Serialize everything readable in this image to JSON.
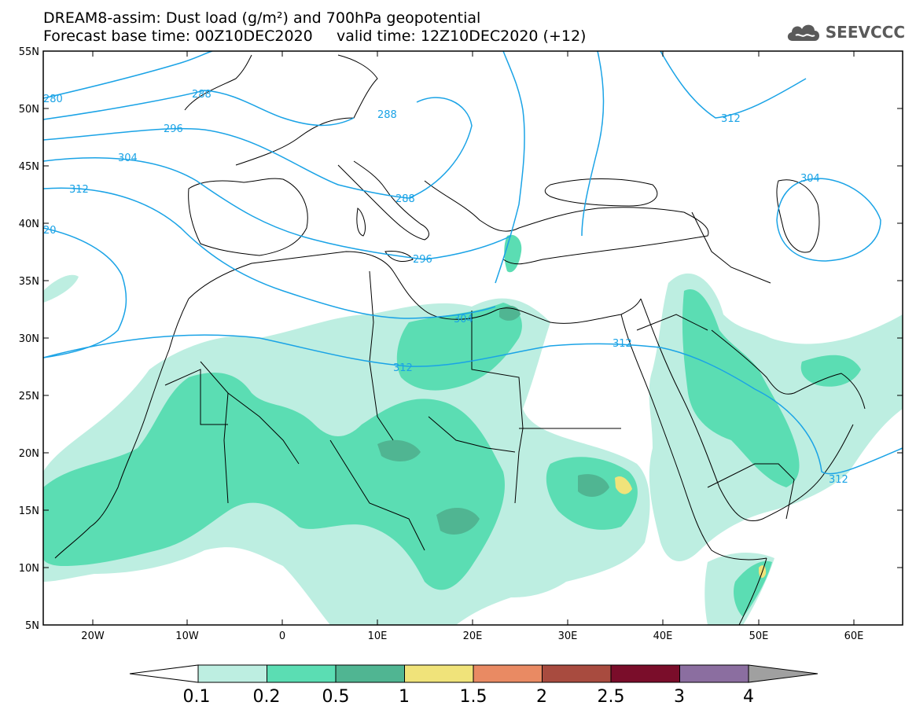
{
  "header": {
    "title_line1": "DREAM8-assim: Dust load (g/m²) and 700hPa geopotential",
    "title_line2": "Forecast base time: 00Z10DEC2020     valid time: 12Z10DEC2020 (+12)"
  },
  "logo": {
    "text": "SEEVCCC",
    "icon": "cloud-icon"
  },
  "axes": {
    "lat_labels": [
      "55N",
      "50N",
      "45N",
      "40N",
      "35N",
      "30N",
      "25N",
      "20N",
      "15N",
      "10N",
      "5N"
    ],
    "lon_labels": [
      "20W",
      "10W",
      "0",
      "10E",
      "20E",
      "30E",
      "40E",
      "50E",
      "60E"
    ]
  },
  "contour_labels": [
    "280",
    "288",
    "288",
    "288",
    "296",
    "296",
    "304",
    "304",
    "304",
    "312",
    "312",
    "312",
    "312",
    "312",
    "20"
  ],
  "colorbar": {
    "ticks": [
      "0.1",
      "0.2",
      "0.5",
      "1",
      "1.5",
      "2",
      "2.5",
      "3",
      "4"
    ],
    "colors": [
      "#ffffff",
      "#bdeee1",
      "#5bddb3",
      "#50b592",
      "#f0e37a",
      "#e98a63",
      "#a84b3f",
      "#7a0d2a",
      "#8b6ea0",
      "#a0a0a0"
    ]
  },
  "colors": {
    "contour": "#1aa3e6",
    "border": "#000000",
    "dust_low": "#bdeee1",
    "dust_mid": "#5bddb3",
    "dust_high": "#50b592",
    "dust_peak": "#f0e37a"
  }
}
